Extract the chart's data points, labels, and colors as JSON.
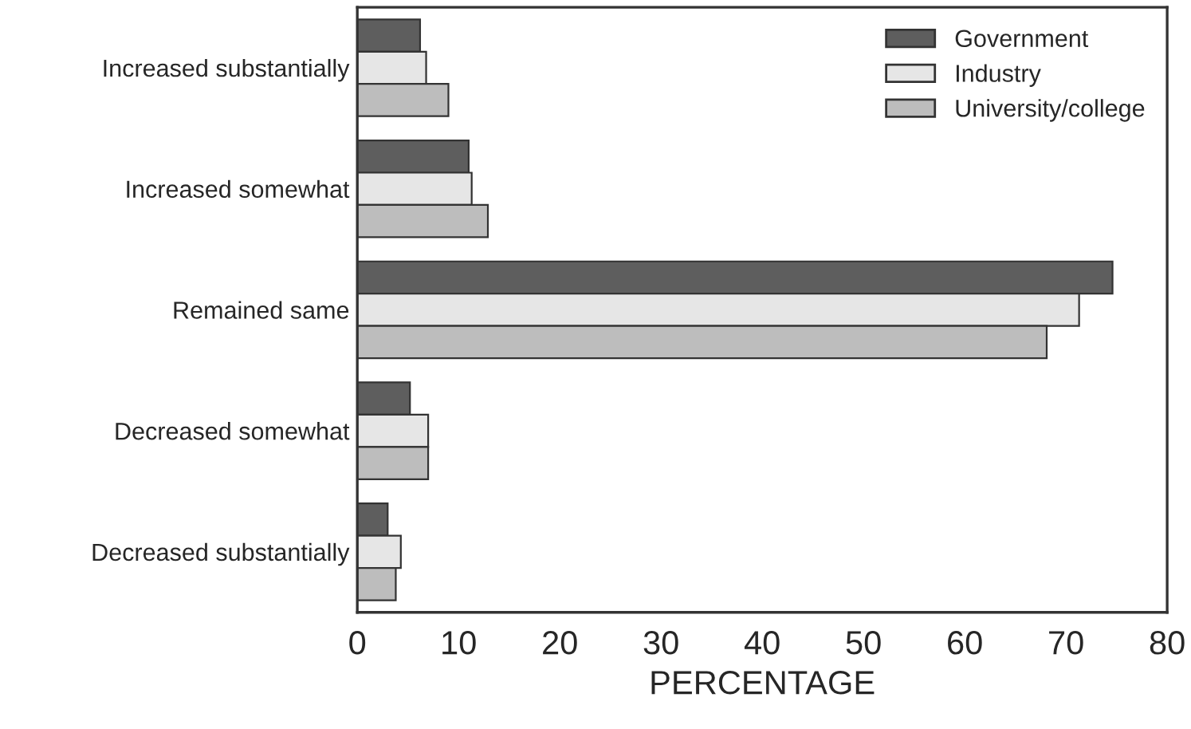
{
  "chart_data": {
    "type": "bar",
    "orientation": "horizontal",
    "xlabel": "PERCENTAGE",
    "categories": [
      "Increased substantially",
      "Increased somewhat",
      "Remained same",
      "Decreased somewhat",
      "Decreased substantially"
    ],
    "series": [
      {
        "name": "Government",
        "color": "#5e5e5e",
        "values": [
          6.2,
          11.0,
          74.6,
          5.2,
          3.0
        ]
      },
      {
        "name": "Industry",
        "color": "#e6e6e6",
        "values": [
          6.8,
          11.3,
          71.3,
          7.0,
          4.3
        ]
      },
      {
        "name": "University/college",
        "color": "#bdbdbd",
        "values": [
          9.0,
          12.9,
          68.1,
          7.0,
          3.8
        ]
      }
    ],
    "xlim": [
      0,
      80
    ],
    "xticks": [
      0,
      10,
      20,
      30,
      40,
      50,
      60,
      70,
      80
    ],
    "grid": false,
    "legend": "top right"
  }
}
